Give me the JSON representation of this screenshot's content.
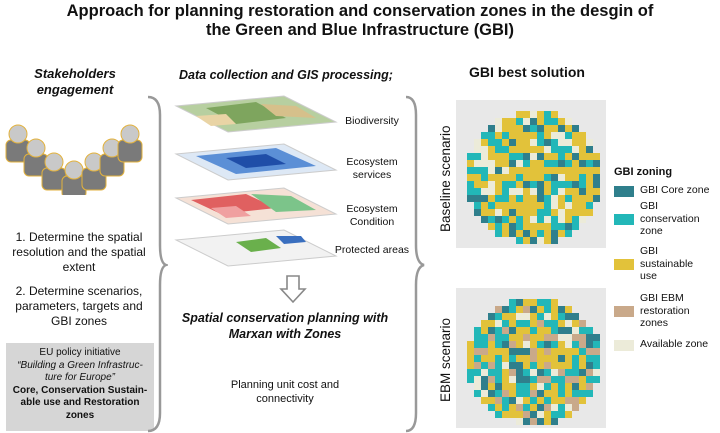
{
  "title": "Approach for planning restoration and conservation zones in the desgin of the Green and Blue Infrastructure (GBI)",
  "left": {
    "header": "Stakeholders engagement",
    "step1": "1. Determine the spatial resolution and the spatial extent",
    "step2": "2. Determine scenarios, parameters, targets and GBI zones",
    "policy": {
      "line1": "EU policy initiative",
      "line2": "“Building a Green Infrastruc-ture for Europe”",
      "line3": "Core, Conservation Sustain-able use  and Restoration zones"
    }
  },
  "middle": {
    "header": "Data collection and GIS processing;",
    "layers": [
      "Biodiversity",
      "Ecosystem services",
      "Ecosystem Condition",
      "Protected areas"
    ],
    "planning": "Spatial conservation planning with Marxan with Zones",
    "cost": "Planning unit cost and connectivity"
  },
  "right": {
    "header": "GBI best solution",
    "scenario1": "Baseline scenario",
    "scenario2": "EBM scenario",
    "legend_title": "GBI zoning",
    "legend": [
      {
        "label": "GBI Core zone",
        "color": "#2f7f8c"
      },
      {
        "label": "GBI conservation zone",
        "color": "#22b7b8"
      },
      {
        "label": "GBI sustainable use",
        "color": "#e2c23a"
      },
      {
        "label": "GBI EBM restoration zones",
        "color": "#c9a98a"
      },
      {
        "label": "Available zone",
        "color": "#ecebd9"
      }
    ]
  },
  "colors": {
    "core": "#2f7f8c",
    "conservation": "#22b7b8",
    "sustainable": "#e2c23a",
    "restoration": "#c9a98a",
    "available": "#ecebd9",
    "person": "#7a7a7a",
    "person_head": "#c9c9c9",
    "person_outline": "#e3b23c"
  }
}
